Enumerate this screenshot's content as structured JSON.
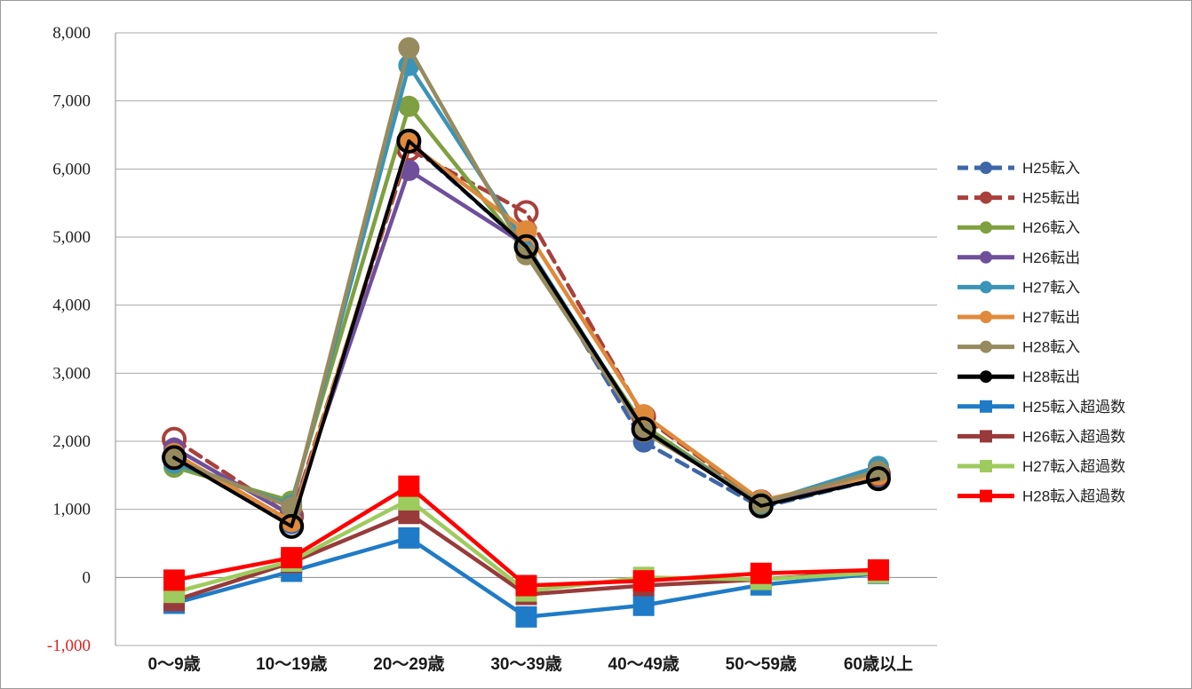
{
  "chart_data": {
    "type": "line",
    "title": "",
    "xlabel": "",
    "ylabel": "",
    "ylim": [
      -1000,
      8000
    ],
    "grid": true,
    "legend_position": "right",
    "y_ticks": [
      "-1,000",
      "0",
      "1,000",
      "2,000",
      "3,000",
      "4,000",
      "5,000",
      "6,000",
      "7,000",
      "8,000"
    ],
    "y_tick_values": [
      -1000,
      0,
      1000,
      2000,
      3000,
      4000,
      5000,
      6000,
      7000,
      8000
    ],
    "negative_tick_color": "#e02020",
    "categories": [
      "0～9歳",
      "10～19歳",
      "20～29歳",
      "30～39歳",
      "40～49歳",
      "50～59歳",
      "60歳以上"
    ],
    "series": [
      {
        "name": "H25転入",
        "values": [
          1760,
          790,
          6400,
          4860,
          1990,
          1030,
          1450
        ],
        "color": "#3f66a8",
        "dashed": true,
        "marker": "circle-filled"
      },
      {
        "name": "H25転出",
        "values": [
          2030,
          900,
          6290,
          5360,
          2360,
          1110,
          1520
        ],
        "color": "#a8403b",
        "dashed": true,
        "marker": "circle-open"
      },
      {
        "name": "H26転入",
        "values": [
          1620,
          1120,
          6920,
          4770,
          2230,
          1080,
          1570
        ],
        "color": "#7ea040",
        "dashed": false,
        "marker": "circle-filled"
      },
      {
        "name": "H26転出",
        "values": [
          1900,
          910,
          5980,
          4880,
          2170,
          1090,
          1520
        ],
        "color": "#6f4f9b",
        "dashed": false,
        "marker": "circle-filled"
      },
      {
        "name": "H27転入",
        "values": [
          1680,
          1060,
          7520,
          4880,
          2170,
          1090,
          1630
        ],
        "color": "#3a94b8",
        "dashed": false,
        "marker": "circle-filled"
      },
      {
        "name": "H27転出",
        "values": [
          1820,
          820,
          6380,
          5090,
          2390,
          1130,
          1510
        ],
        "color": "#df8a3b",
        "dashed": false,
        "marker": "circle-filled"
      },
      {
        "name": "H28転入",
        "values": [
          1730,
          1030,
          7780,
          4740,
          2140,
          1100,
          1560
        ],
        "color": "#968b5e",
        "dashed": false,
        "marker": "circle-filled"
      },
      {
        "name": "H28転出",
        "values": [
          1760,
          750,
          6410,
          4860,
          2180,
          1050,
          1450
        ],
        "color": "#000000",
        "dashed": false,
        "marker": "circle-open"
      },
      {
        "name": "H25転入超過数",
        "values": [
          -380,
          90,
          580,
          -580,
          -410,
          -110,
          60
        ],
        "color": "#1f7bc7",
        "dashed": false,
        "marker": "square"
      },
      {
        "name": "H26転入超過数",
        "values": [
          -340,
          220,
          940,
          -250,
          -120,
          -30,
          100
        ],
        "color": "#993a3a",
        "dashed": false,
        "marker": "square"
      },
      {
        "name": "H27転入超過数",
        "values": [
          -220,
          240,
          1140,
          -200,
          0,
          -30,
          70
        ],
        "color": "#9ecb5d",
        "dashed": false,
        "marker": "square"
      },
      {
        "name": "H28転入超過数",
        "values": [
          -40,
          290,
          1340,
          -120,
          -50,
          60,
          110
        ],
        "color": "#ff0000",
        "dashed": false,
        "marker": "square"
      }
    ]
  }
}
